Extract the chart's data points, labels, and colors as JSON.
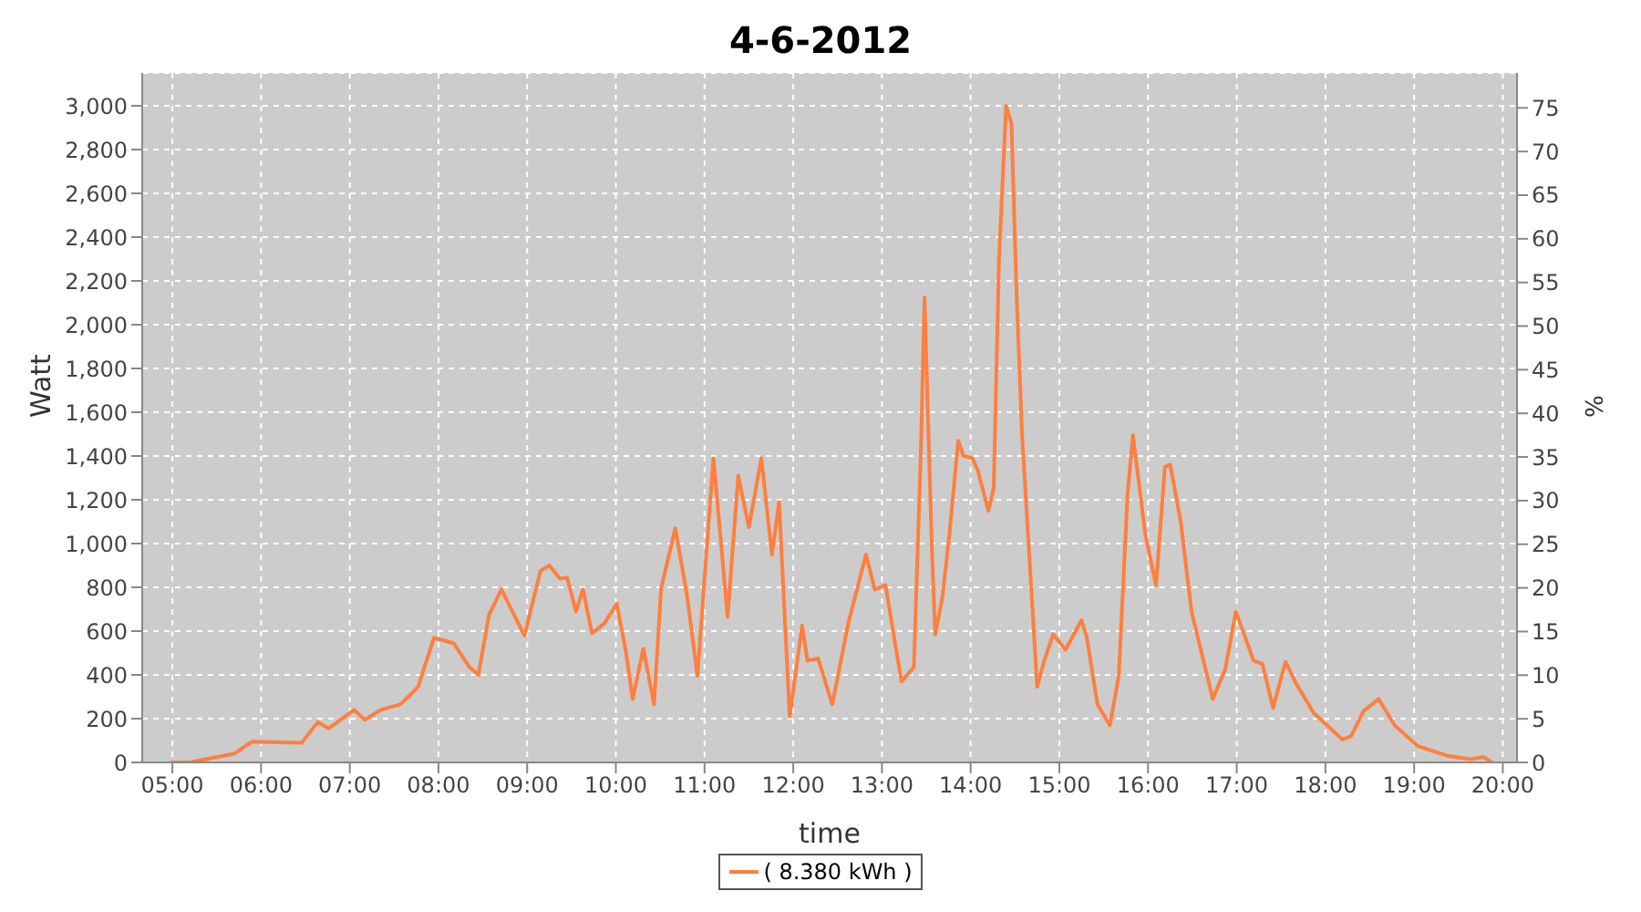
{
  "chart_data": {
    "type": "line",
    "title": "4-6-2012",
    "xlabel": "time",
    "ylabel": "Watt",
    "y2label": "%",
    "x": [
      4.97,
      5.2,
      5.44,
      5.7,
      5.84,
      5.9,
      6.46,
      6.64,
      6.76,
      7.05,
      7.17,
      7.35,
      7.57,
      7.77,
      7.95,
      8.17,
      8.35,
      8.45,
      8.57,
      8.71,
      8.97,
      9.15,
      9.25,
      9.37,
      9.45,
      9.55,
      9.63,
      9.73,
      9.87,
      10.01,
      10.11,
      10.19,
      10.31,
      10.43,
      10.51,
      10.67,
      10.8,
      10.92,
      11.02,
      11.1,
      11.26,
      11.38,
      11.5,
      11.64,
      11.76,
      11.84,
      11.96,
      12.1,
      12.16,
      12.28,
      12.44,
      12.62,
      12.82,
      12.92,
      13.04,
      13.22,
      13.36,
      13.44,
      13.48,
      13.5,
      13.56,
      13.6,
      13.68,
      13.76,
      13.86,
      13.92,
      14.02,
      14.08,
      14.2,
      14.26,
      14.32,
      14.4,
      14.46,
      14.52,
      14.58,
      14.66,
      14.75,
      14.83,
      14.93,
      15.07,
      15.25,
      15.31,
      15.43,
      15.57,
      15.67,
      15.77,
      15.83,
      15.97,
      16.09,
      16.19,
      16.25,
      16.37,
      16.49,
      16.73,
      16.87,
      16.99,
      17.19,
      17.29,
      17.41,
      17.55,
      17.67,
      17.87,
      18.19,
      18.29,
      18.43,
      18.6,
      18.78,
      19.04,
      19.38,
      19.64,
      19.78,
      19.88
    ],
    "series": [
      {
        "name": "( 8.380 kWh )",
        "color": "#ff7f3f",
        "values": [
          0,
          0,
          20,
          40,
          80,
          95,
          90,
          185,
          155,
          240,
          195,
          240,
          265,
          345,
          570,
          545,
          435,
          400,
          675,
          790,
          580,
          875,
          900,
          840,
          845,
          690,
          790,
          590,
          635,
          725,
          515,
          290,
          520,
          265,
          795,
          1070,
          770,
          395,
          955,
          1390,
          665,
          1310,
          1075,
          1390,
          950,
          1190,
          210,
          625,
          465,
          475,
          265,
          635,
          950,
          790,
          810,
          370,
          435,
          1440,
          2125,
          1840,
          1015,
          585,
          750,
          1040,
          1470,
          1400,
          1390,
          1335,
          1150,
          1255,
          2300,
          3000,
          2920,
          2115,
          1495,
          955,
          345,
          465,
          585,
          515,
          650,
          570,
          265,
          170,
          395,
          1230,
          1495,
          1040,
          810,
          1350,
          1360,
          1095,
          690,
          290,
          425,
          690,
          465,
          450,
          250,
          460,
          360,
          225,
          105,
          120,
          235,
          290,
          170,
          75,
          30,
          15,
          25,
          0
        ]
      }
    ],
    "xlim": [
      4.66,
      20.16
    ],
    "xticks": [
      {
        "value": 5,
        "label": "05:00"
      },
      {
        "value": 6,
        "label": "06:00"
      },
      {
        "value": 7,
        "label": "07:00"
      },
      {
        "value": 8,
        "label": "08:00"
      },
      {
        "value": 9,
        "label": "09:00"
      },
      {
        "value": 10,
        "label": "10:00"
      },
      {
        "value": 11,
        "label": "11:00"
      },
      {
        "value": 12,
        "label": "12:00"
      },
      {
        "value": 13,
        "label": "13:00"
      },
      {
        "value": 14,
        "label": "14:00"
      },
      {
        "value": 15,
        "label": "15:00"
      },
      {
        "value": 16,
        "label": "16:00"
      },
      {
        "value": 17,
        "label": "17:00"
      },
      {
        "value": 18,
        "label": "18:00"
      },
      {
        "value": 19,
        "label": "19:00"
      },
      {
        "value": 20,
        "label": "20:00"
      }
    ],
    "ylim": [
      0,
      3150
    ],
    "yticks": [
      {
        "value": 0,
        "label": "0"
      },
      {
        "value": 200,
        "label": "200"
      },
      {
        "value": 400,
        "label": "400"
      },
      {
        "value": 600,
        "label": "600"
      },
      {
        "value": 800,
        "label": "800"
      },
      {
        "value": 1000,
        "label": "1,000"
      },
      {
        "value": 1200,
        "label": "1,200"
      },
      {
        "value": 1400,
        "label": "1,400"
      },
      {
        "value": 1600,
        "label": "1,600"
      },
      {
        "value": 1800,
        "label": "1,800"
      },
      {
        "value": 2000,
        "label": "2,000"
      },
      {
        "value": 2200,
        "label": "2,200"
      },
      {
        "value": 2400,
        "label": "2,400"
      },
      {
        "value": 2600,
        "label": "2,600"
      },
      {
        "value": 2800,
        "label": "2,800"
      },
      {
        "value": 3000,
        "label": "3,000"
      }
    ],
    "y2lim": [
      0,
      79
    ],
    "y2ticks": [
      0,
      5,
      10,
      15,
      20,
      25,
      30,
      35,
      40,
      45,
      50,
      55,
      60,
      65,
      70,
      75
    ],
    "grid": true,
    "legend": "bottom",
    "marker": "none",
    "line_style": "solid"
  }
}
